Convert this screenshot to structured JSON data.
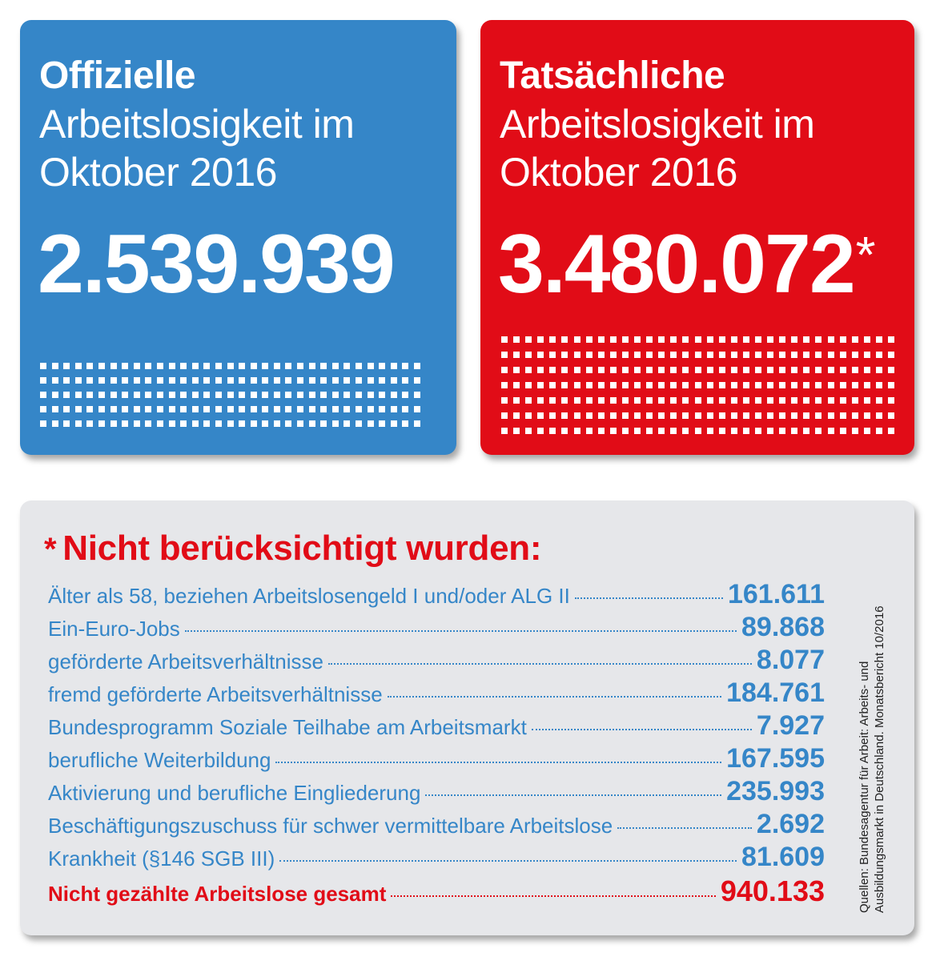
{
  "official": {
    "title_bold": "Offizielle",
    "title_line2": "Arbeitslosigkeit im",
    "title_line3": "Oktober 2016",
    "number": "2.539.939",
    "color": "#3586c8",
    "dot_rows": 5,
    "dot_cols": 33
  },
  "actual": {
    "title_bold": "Tatsächliche",
    "title_line2": "Arbeitslosigkeit im",
    "title_line3": "Oktober 2016",
    "number": "3.480.072",
    "asterisk": "*",
    "color": "#e10c17",
    "dot_rows": 7,
    "dot_cols": 33
  },
  "not_counted": {
    "asterisk": "*",
    "heading": "Nicht berücksichtigt wurden:",
    "items": [
      {
        "label": "Älter als 58, beziehen Arbeitslosengeld I und/oder ALG II",
        "value": "161.611"
      },
      {
        "label": "Ein-Euro-Jobs",
        "value": "89.868"
      },
      {
        "label": "geförderte Arbeitsverhältnisse",
        "value": "8.077"
      },
      {
        "label": "fremd geförderte Arbeitsverhältnisse",
        "value": "184.761"
      },
      {
        "label": "Bundesprogramm Soziale Teilhabe am Arbeitsmarkt",
        "value": "7.927"
      },
      {
        "label": "berufliche Weiterbildung",
        "value": "167.595"
      },
      {
        "label": "Aktivierung und berufliche Eingliederung",
        "value": "235.993"
      },
      {
        "label": "Beschäftigungszuschuss für schwer vermittelbare Arbeitslose",
        "value": "2.692"
      },
      {
        "label": "Krankheit (§146 SGB III)",
        "value": "81.609"
      }
    ],
    "total": {
      "label": "Nicht gezählte Arbeitslose gesamt",
      "value": "940.133"
    },
    "source_line1": "Quellen: Bundesagentur für Arbeit: Arbeits- und",
    "source_line2": "Ausbildungsmarkt in Deutschland. Monatsbericht 10/2016"
  },
  "colors": {
    "blue": "#3586c8",
    "red": "#e10c17",
    "gray_panel": "#e6e7ea"
  }
}
